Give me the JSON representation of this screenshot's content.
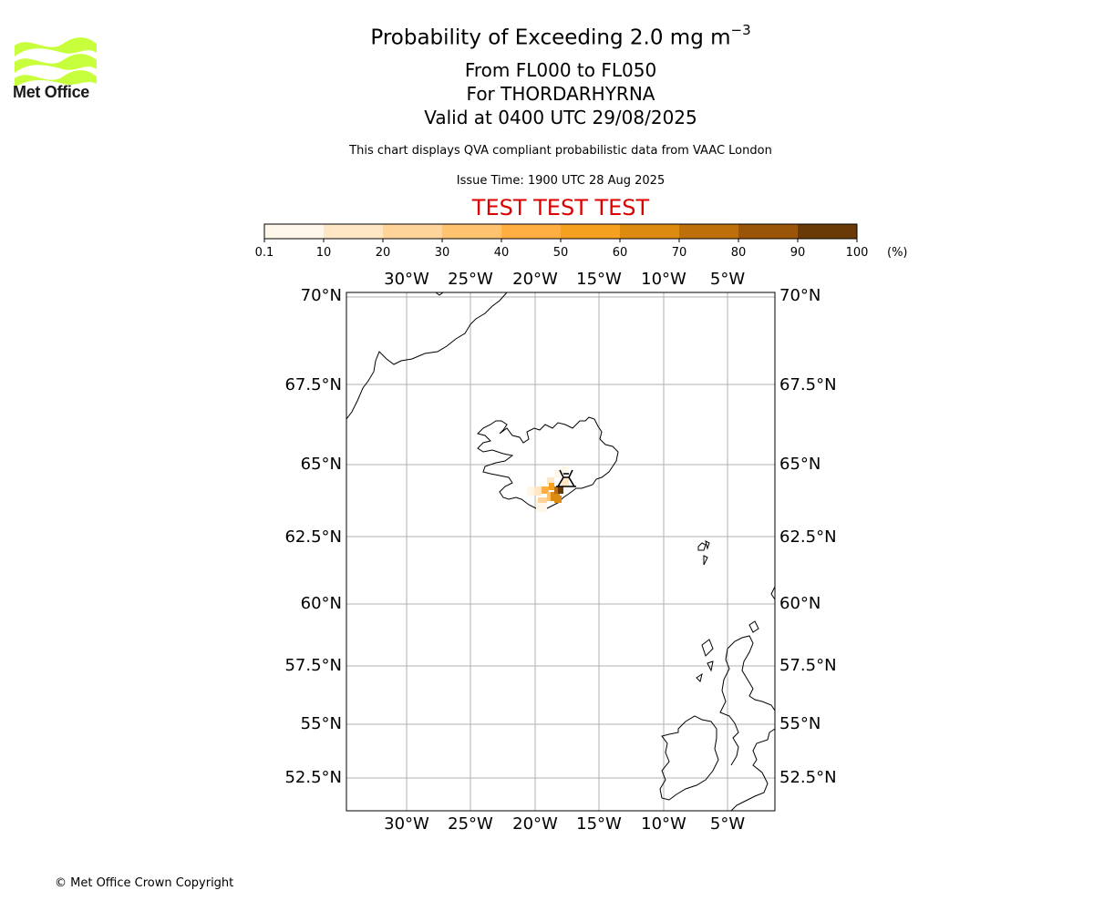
{
  "logo": {
    "text": "Met Office",
    "icon": "met-office-wave-logo",
    "color": "#c8ff3c"
  },
  "title": {
    "main": "Probability of Exceeding 2.0 mg m",
    "main_sup": "−3",
    "levels": "From FL000 to FL050",
    "volcano": "For THORDARHYRNA",
    "valid": "Valid at 0400 UTC 29/08/2025"
  },
  "subtitle": "This chart displays QVA compliant probabilistic data from VAAC London",
  "issue_time": "Issue Time: 1900 UTC 28 Aug 2025",
  "test_banner": "TEST TEST TEST",
  "colorbar": {
    "ticks": [
      "0.1",
      "10",
      "20",
      "30",
      "40",
      "50",
      "60",
      "70",
      "80",
      "90",
      "100"
    ],
    "unit": "(%)",
    "colors": [
      "#fff7ea",
      "#ffe7c6",
      "#ffd49a",
      "#ffc26e",
      "#ffae42",
      "#f6a020",
      "#dd8b10",
      "#bd6f0a",
      "#9b5508",
      "#6a3a06"
    ]
  },
  "map": {
    "lon_ticks": [
      "30°W",
      "25°W",
      "20°W",
      "15°W",
      "10°W",
      "5°W"
    ],
    "lat_ticks": [
      "70°N",
      "67.5°N",
      "65°N",
      "62.5°N",
      "60°N",
      "57.5°N",
      "55°N",
      "52.5°N"
    ],
    "volcano_icon": "volcano-icon"
  },
  "copyright": "© Met Office Crown Copyright"
}
